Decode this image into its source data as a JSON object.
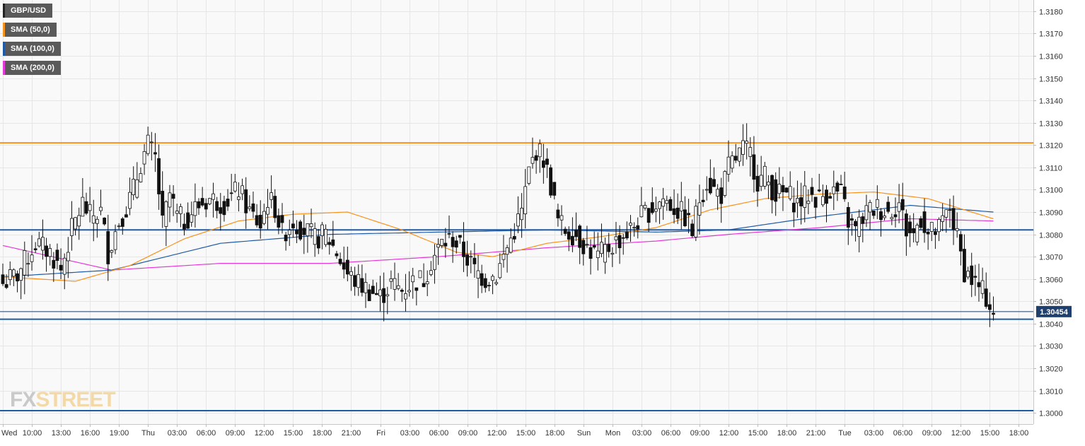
{
  "legend": [
    {
      "label": "GBP/USD",
      "color": "#222222"
    },
    {
      "label": "SMA (50,0)",
      "color": "#f7931e"
    },
    {
      "label": "SMA (100,0)",
      "color": "#1f5aa6"
    },
    {
      "label": "SMA (200,0)",
      "color": "#e53ad8"
    }
  ],
  "watermark": {
    "fx": "FX",
    "street": "STREET"
  },
  "chart_data": {
    "type": "candlestick",
    "symbol": "GBP/USD",
    "ylim": [
      1.2995,
      1.3185
    ],
    "y_ticks": [
      "1.3000",
      "1.3010",
      "1.3020",
      "1.3030",
      "1.3040",
      "1.3050",
      "1.3060",
      "1.3070",
      "1.3080",
      "1.3090",
      "1.3100",
      "1.3110",
      "1.3120",
      "1.3130",
      "1.3140",
      "1.3150",
      "1.3160",
      "1.3170",
      "1.3180"
    ],
    "x_tick_labels": [
      "Wed",
      "10:00",
      "13:00",
      "16:00",
      "19:00",
      "Thu",
      "03:00",
      "06:00",
      "09:00",
      "12:00",
      "15:00",
      "18:00",
      "21:00",
      "Fri",
      "03:00",
      "06:00",
      "09:00",
      "12:00",
      "15:00",
      "18:00",
      "Sun",
      "Mon",
      "03:00",
      "06:00",
      "09:00",
      "12:00",
      "15:00",
      "18:00",
      "21:00",
      "Tue",
      "03:00",
      "06:00",
      "09:00",
      "12:00",
      "15:00",
      "18:00"
    ],
    "current_price": "1.30454",
    "grid": true,
    "horizontal_levels": [
      {
        "value": 1.3121,
        "color": "#f7931e"
      },
      {
        "value": 1.3082,
        "color": "#1f5aa6"
      },
      {
        "value": 1.3042,
        "color": "#1f5aa6"
      },
      {
        "value": 1.3001,
        "color": "#1f5aa6"
      }
    ],
    "close_path": [
      [
        0,
        1.3058
      ],
      [
        4,
        1.3062
      ],
      [
        9,
        1.3076
      ],
      [
        13,
        1.3072
      ],
      [
        16,
        1.3064
      ],
      [
        19,
        1.3082
      ],
      [
        22,
        1.3094
      ],
      [
        24,
        1.3088
      ],
      [
        27,
        1.309
      ],
      [
        29,
        1.3072
      ],
      [
        32,
        1.3086
      ],
      [
        34,
        1.3092
      ],
      [
        36,
        1.31
      ],
      [
        38,
        1.3112
      ],
      [
        40,
        1.312
      ],
      [
        42,
        1.3114
      ],
      [
        44,
        1.3084
      ],
      [
        46,
        1.3098
      ],
      [
        48,
        1.3088
      ],
      [
        50,
        1.3086
      ],
      [
        53,
        1.3092
      ],
      [
        57,
        1.3096
      ],
      [
        61,
        1.3094
      ],
      [
        65,
        1.31
      ],
      [
        68,
        1.309
      ],
      [
        71,
        1.3084
      ],
      [
        73,
        1.3096
      ],
      [
        75,
        1.3092
      ],
      [
        77,
        1.308
      ],
      [
        80,
        1.3086
      ],
      [
        83,
        1.3082
      ],
      [
        86,
        1.3078
      ],
      [
        89,
        1.308
      ],
      [
        92,
        1.3072
      ],
      [
        95,
        1.3062
      ],
      [
        98,
        1.3058
      ],
      [
        101,
        1.3055
      ],
      [
        104,
        1.3052
      ],
      [
        107,
        1.3058
      ],
      [
        110,
        1.3055
      ],
      [
        113,
        1.3059
      ],
      [
        116,
        1.306
      ],
      [
        118,
        1.3068
      ],
      [
        121,
        1.3076
      ],
      [
        124,
        1.3078
      ],
      [
        127,
        1.3072
      ],
      [
        130,
        1.3064
      ],
      [
        133,
        1.306
      ],
      [
        136,
        1.3062
      ],
      [
        139,
        1.3074
      ],
      [
        141,
        1.3082
      ],
      [
        143,
        1.309
      ],
      [
        145,
        1.3108
      ],
      [
        147,
        1.3118
      ],
      [
        149,
        1.3114
      ],
      [
        151,
        1.3102
      ],
      [
        153,
        1.3086
      ],
      [
        155,
        1.3082
      ],
      [
        158,
        1.308
      ],
      [
        161,
        1.3074
      ],
      [
        164,
        1.307
      ],
      [
        167,
        1.3074
      ],
      [
        170,
        1.3078
      ],
      [
        173,
        1.3082
      ],
      [
        176,
        1.3088
      ],
      [
        179,
        1.3092
      ],
      [
        182,
        1.3096
      ],
      [
        185,
        1.3092
      ],
      [
        188,
        1.3088
      ],
      [
        190,
        1.3081
      ],
      [
        192,
        1.3096
      ],
      [
        194,
        1.3104
      ],
      [
        196,
        1.31
      ],
      [
        198,
        1.3098
      ],
      [
        200,
        1.311
      ],
      [
        202,
        1.3114
      ],
      [
        204,
        1.3118
      ],
      [
        206,
        1.3116
      ],
      [
        208,
        1.3104
      ],
      [
        210,
        1.3106
      ],
      [
        213,
        1.3098
      ],
      [
        216,
        1.3098
      ],
      [
        219,
        1.3094
      ],
      [
        222,
        1.3098
      ],
      [
        225,
        1.3096
      ],
      [
        228,
        1.31
      ],
      [
        231,
        1.3098
      ],
      [
        233,
        1.3086
      ],
      [
        235,
        1.3082
      ],
      [
        238,
        1.309
      ],
      [
        241,
        1.3092
      ],
      [
        244,
        1.309
      ],
      [
        247,
        1.3094
      ],
      [
        249,
        1.3082
      ],
      [
        251,
        1.308
      ],
      [
        253,
        1.3088
      ],
      [
        255,
        1.308
      ],
      [
        258,
        1.3082
      ],
      [
        261,
        1.3092
      ],
      [
        263,
        1.3078
      ],
      [
        265,
        1.3064
      ],
      [
        267,
        1.306
      ],
      [
        269,
        1.3056
      ],
      [
        271,
        1.3052
      ],
      [
        273,
        1.3045
      ]
    ],
    "sma_50": [
      [
        0,
        1.3061
      ],
      [
        20,
        1.3059
      ],
      [
        35,
        1.3066
      ],
      [
        50,
        1.3078
      ],
      [
        65,
        1.3086
      ],
      [
        80,
        1.3089
      ],
      [
        95,
        1.309
      ],
      [
        110,
        1.3082
      ],
      [
        125,
        1.3072
      ],
      [
        135,
        1.307
      ],
      [
        150,
        1.3076
      ],
      [
        165,
        1.3079
      ],
      [
        180,
        1.3083
      ],
      [
        195,
        1.3091
      ],
      [
        210,
        1.3096
      ],
      [
        225,
        1.3098
      ],
      [
        240,
        1.3099
      ],
      [
        255,
        1.3096
      ],
      [
        273,
        1.3087
      ]
    ],
    "sma_100": [
      [
        0,
        1.3061
      ],
      [
        30,
        1.3064
      ],
      [
        60,
        1.3076
      ],
      [
        90,
        1.308
      ],
      [
        120,
        1.3081
      ],
      [
        150,
        1.3082
      ],
      [
        180,
        1.3081
      ],
      [
        200,
        1.3082
      ],
      [
        225,
        1.3088
      ],
      [
        250,
        1.3093
      ],
      [
        273,
        1.309
      ]
    ],
    "sma_200": [
      [
        0,
        1.3075
      ],
      [
        30,
        1.3064
      ],
      [
        60,
        1.3067
      ],
      [
        90,
        1.3067
      ],
      [
        120,
        1.307
      ],
      [
        150,
        1.3074
      ],
      [
        180,
        1.3077
      ],
      [
        200,
        1.308
      ],
      [
        225,
        1.3083
      ],
      [
        250,
        1.3087
      ],
      [
        273,
        1.3086
      ]
    ]
  }
}
